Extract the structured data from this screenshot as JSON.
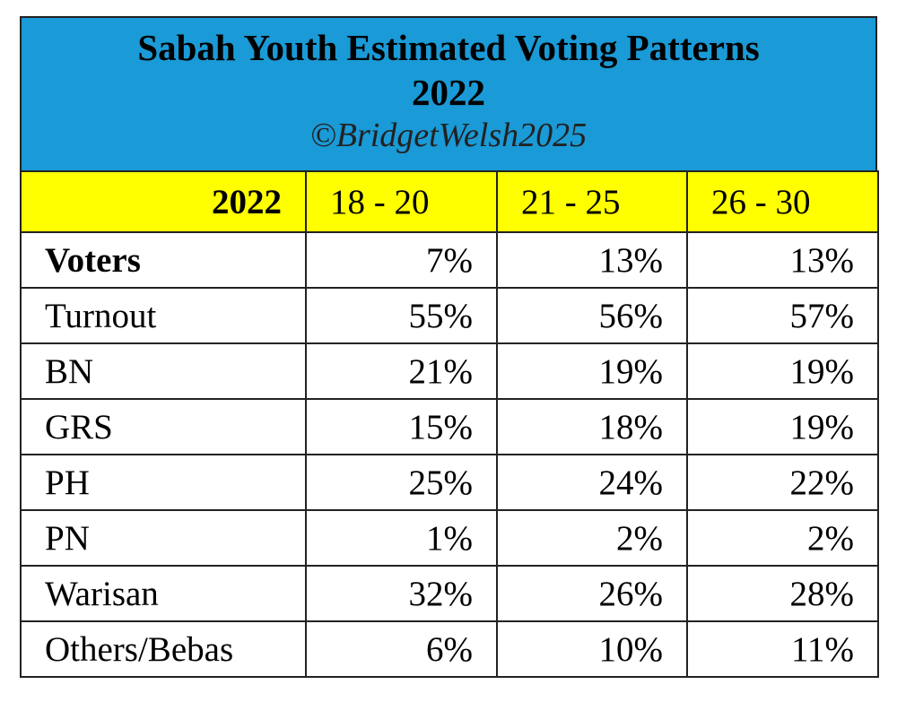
{
  "header": {
    "title_line1": "Sabah Youth Estimated Voting Patterns",
    "title_line2": "2022",
    "credit": "©BridgetWelsh2025"
  },
  "table": {
    "columns": [
      "2022",
      "18 - 20",
      "21 - 25",
      "26 - 30"
    ],
    "rows": [
      [
        "Voters",
        "7%",
        "13%",
        "13%"
      ],
      [
        "Turnout",
        "55%",
        "56%",
        "57%"
      ],
      [
        "BN",
        "21%",
        "19%",
        "19%"
      ],
      [
        "GRS",
        "15%",
        "18%",
        "19%"
      ],
      [
        "PH",
        "25%",
        "24%",
        "22%"
      ],
      [
        "PN",
        "1%",
        "2%",
        "2%"
      ],
      [
        "Warisan",
        "32%",
        "26%",
        "28%"
      ],
      [
        "Others/Bebas",
        "6%",
        "10%",
        "11%"
      ]
    ]
  }
}
